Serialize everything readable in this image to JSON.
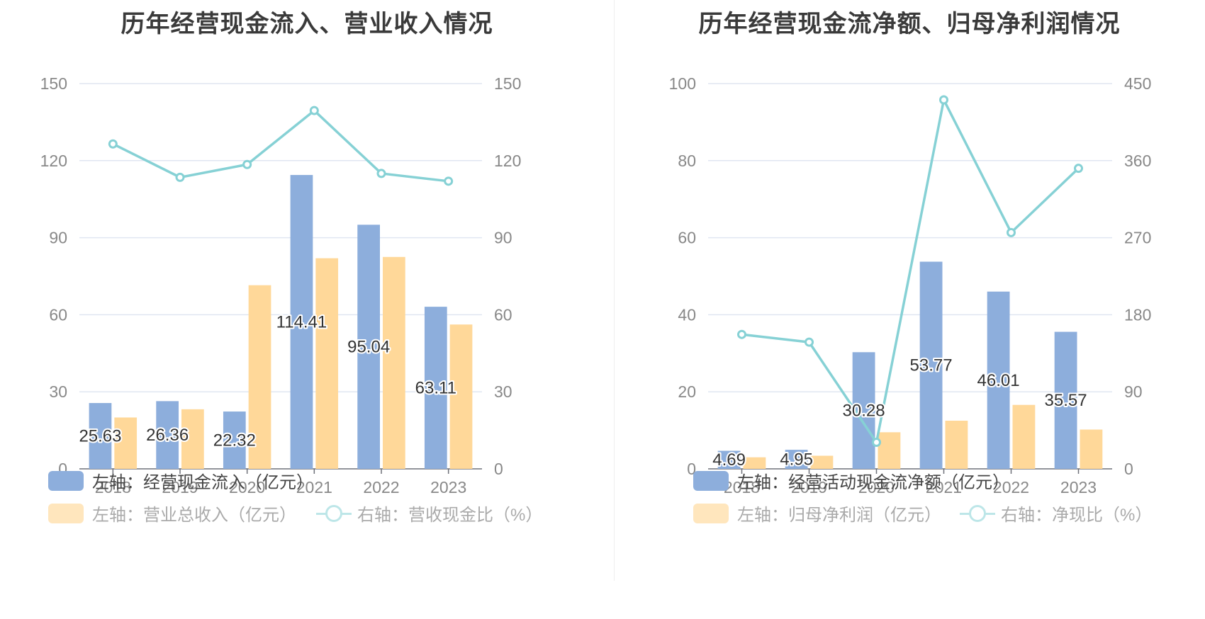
{
  "colors": {
    "bar_primary": "#8daedc",
    "bar_secondary": "#ffd899",
    "line": "#86d1d5",
    "grid": "#e0e6f1",
    "axis": "#6e7079"
  },
  "chart_data": [
    {
      "type": "bar",
      "title": "历年经营现金流入、营业收入情况",
      "categories": [
        "2018",
        "2019",
        "2020",
        "2021",
        "2022",
        "2023"
      ],
      "y_left": {
        "min": 0,
        "max": 150,
        "ticks": [
          0,
          30,
          60,
          90,
          120,
          150
        ]
      },
      "y_right": {
        "min": 0,
        "max": 150,
        "ticks": [
          0,
          30,
          60,
          90,
          120,
          150
        ]
      },
      "grid": true,
      "legend_position": "bottom-left",
      "series": [
        {
          "name": "左轴：经营现金流入（亿元）",
          "type": "bar",
          "axis": "left",
          "values": [
            25.63,
            26.36,
            22.32,
            114.41,
            95.04,
            63.11
          ],
          "labels": [
            "25.63",
            "26.36",
            "22.32",
            "114.41",
            "95.04",
            "63.11"
          ]
        },
        {
          "name": "左轴：营业总收入（亿元）",
          "type": "bar",
          "axis": "left",
          "values": [
            20.0,
            23.2,
            71.5,
            82.0,
            82.5,
            56.2
          ]
        },
        {
          "name": "右轴：营收现金比（%）",
          "type": "line",
          "axis": "right",
          "values": [
            126.5,
            113.5,
            118.5,
            139.5,
            115.0,
            112.0
          ]
        }
      ]
    },
    {
      "type": "bar",
      "title": "历年经营现金流净额、归母净利润情况",
      "categories": [
        "2018",
        "2019",
        "2020",
        "2021",
        "2022",
        "2023"
      ],
      "y_left": {
        "min": 0,
        "max": 100,
        "ticks": [
          0,
          20,
          40,
          60,
          80,
          100
        ]
      },
      "y_right": {
        "min": 0,
        "max": 450,
        "ticks": [
          0,
          90,
          180,
          270,
          360,
          450
        ]
      },
      "grid": true,
      "legend_position": "bottom-left",
      "series": [
        {
          "name": "左轴：经营活动现金流净额（亿元）",
          "type": "bar",
          "axis": "left",
          "values": [
            4.69,
            4.95,
            30.28,
            53.77,
            46.01,
            35.57
          ],
          "labels": [
            "4.69",
            "4.95",
            "30.28",
            "53.77",
            "46.01",
            "35.57"
          ]
        },
        {
          "name": "左轴：归母净利润（亿元）",
          "type": "bar",
          "axis": "left",
          "values": [
            3.0,
            3.4,
            9.5,
            12.5,
            16.6,
            10.2
          ]
        },
        {
          "name": "右轴：净现比（%）",
          "type": "line",
          "axis": "right",
          "values": [
            157,
            148,
            31,
            431,
            276,
            351
          ]
        }
      ]
    }
  ]
}
